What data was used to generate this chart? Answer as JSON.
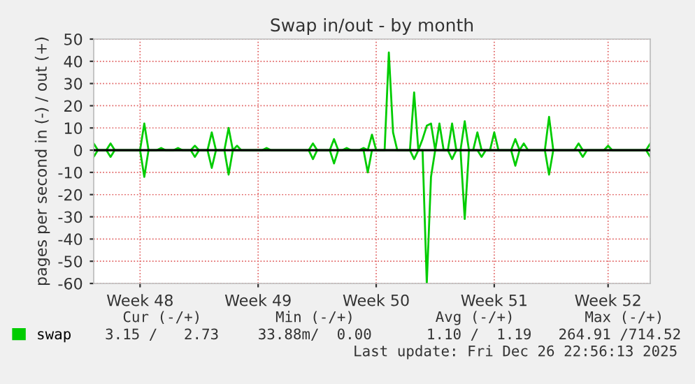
{
  "chart_data": {
    "type": "line",
    "title": "Swap in/out - by month",
    "ylabel": "pages per second in (-) / out (+)",
    "categories": [
      null,
      null,
      null,
      null,
      null,
      null,
      null,
      null,
      null,
      null,
      null,
      "Week 48",
      null,
      null,
      null,
      null,
      null,
      null,
      null,
      null,
      null,
      null,
      null,
      null,
      null,
      null,
      null,
      null,
      null,
      null,
      null,
      null,
      null,
      null,
      null,
      null,
      null,
      null,
      null,
      "Week 49",
      null,
      null,
      null,
      null,
      null,
      null,
      null,
      null,
      null,
      null,
      null,
      null,
      null,
      null,
      null,
      null,
      null,
      null,
      null,
      null,
      null,
      null,
      null,
      null,
      null,
      null,
      null,
      "Week 50",
      null,
      null,
      null,
      null,
      null,
      null,
      null,
      null,
      null,
      null,
      null,
      null,
      null,
      null,
      null,
      null,
      null,
      null,
      null,
      null,
      null,
      null,
      null,
      null,
      null,
      null,
      null,
      "Week 51",
      null,
      null,
      null,
      null,
      null,
      null,
      null,
      null,
      null,
      null,
      null,
      null,
      null,
      null,
      null,
      null,
      null,
      null,
      null,
      null,
      null,
      null,
      null,
      null,
      null,
      null,
      "Week 52",
      null,
      null,
      null,
      null,
      null,
      null,
      null,
      null,
      null,
      null
    ],
    "ylim": [
      -60,
      50
    ],
    "yticks": [
      -60,
      -50,
      -40,
      -30,
      -20,
      -10,
      0,
      10,
      20,
      30,
      40,
      50
    ],
    "grid": true,
    "legend": "bottom left",
    "series": [
      {
        "name": "swap",
        "color": "#00cc00",
        "values": [
          3,
          0,
          0,
          0,
          3,
          0,
          0,
          0,
          0,
          0,
          0,
          0,
          12,
          0,
          0,
          0,
          1,
          0,
          0,
          0,
          1,
          0,
          0,
          0,
          2,
          0,
          0,
          0,
          8,
          0,
          0,
          0,
          10,
          0,
          2,
          0,
          0,
          0,
          0,
          0,
          0,
          1,
          0,
          0,
          0,
          0,
          0,
          0,
          0,
          0,
          0,
          0,
          3,
          0,
          0,
          0,
          0,
          5,
          0,
          0,
          1,
          0,
          0,
          0,
          1,
          0,
          7,
          0,
          0,
          0,
          44,
          8,
          0,
          0,
          0,
          0,
          26,
          0,
          5,
          11,
          12,
          0,
          12,
          0,
          0,
          12,
          0,
          0,
          13,
          0,
          0,
          8,
          0,
          0,
          0,
          8,
          0,
          0,
          0,
          0,
          5,
          0,
          3,
          0,
          0,
          0,
          0,
          0,
          15,
          0,
          0,
          0,
          0,
          0,
          0,
          3,
          0,
          0,
          0,
          0,
          0,
          0,
          2,
          0,
          0,
          0,
          0,
          0,
          0,
          0,
          0,
          0,
          3
        ]
      },
      {
        "color": "#00cc00",
        "values": [
          -3,
          0,
          0,
          0,
          -3,
          0,
          0,
          0,
          0,
          0,
          0,
          0,
          -12,
          0,
          0,
          0,
          0,
          0,
          0,
          0,
          0,
          0,
          0,
          0,
          -3,
          0,
          0,
          0,
          -8,
          0,
          0,
          0,
          -11,
          0,
          0,
          0,
          0,
          0,
          0,
          0,
          0,
          0,
          0,
          0,
          0,
          0,
          0,
          0,
          0,
          0,
          0,
          0,
          -4,
          0,
          0,
          0,
          0,
          -6,
          0,
          0,
          0,
          0,
          0,
          0,
          0,
          -10,
          0,
          0,
          0,
          0,
          0,
          0,
          0,
          0,
          0,
          0,
          -4,
          0,
          0,
          -60,
          -12,
          0,
          0,
          0,
          0,
          -4,
          0,
          0,
          -31,
          0,
          0,
          0,
          -3,
          0,
          0,
          0,
          0,
          0,
          0,
          0,
          -7,
          0,
          0,
          0,
          0,
          0,
          0,
          0,
          -11,
          0,
          0,
          0,
          0,
          0,
          0,
          0,
          -3,
          0,
          0,
          0,
          0,
          0,
          0,
          0,
          0,
          0,
          0,
          0,
          0,
          0,
          0,
          0,
          -3
        ]
      }
    ],
    "ref_lines": [
      {
        "axis": "y",
        "value": 0,
        "color": "#000000"
      }
    ],
    "annotations": [
      "Cur (-/+)",
      "Min (-/+)",
      "Avg (-/+)",
      "Max (-/+)",
      "3.15 /   2.73",
      "33.88m/  0.00",
      "1.10 /  1.19",
      "264.91 /714.52",
      "Last update: Fri Dec 26 22:56:13 2025"
    ]
  }
}
